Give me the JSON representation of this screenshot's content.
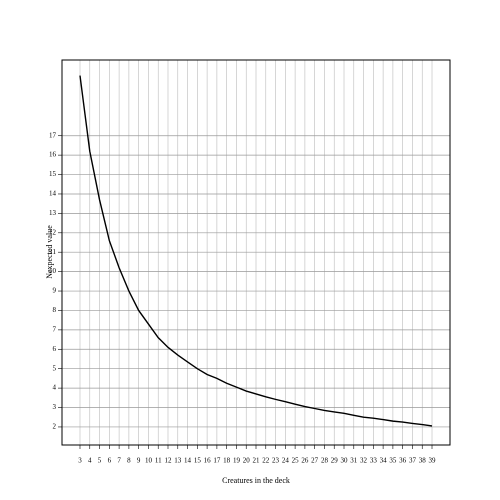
{
  "chart_data": {
    "type": "line",
    "xlabel": "Creatures in the deck",
    "ylabel": "Nexpected value",
    "x": [
      3,
      4,
      5,
      6,
      7,
      8,
      9,
      10,
      11,
      12,
      13,
      14,
      15,
      16,
      17,
      18,
      19,
      20,
      21,
      22,
      23,
      24,
      25,
      26,
      27,
      28,
      29,
      30,
      31,
      32,
      33,
      34,
      35,
      36,
      37,
      38,
      39
    ],
    "values": [
      20.1,
      16.2,
      13.7,
      11.6,
      10.2,
      9.0,
      8.0,
      7.3,
      6.6,
      6.1,
      5.7,
      5.35,
      5.0,
      4.7,
      4.5,
      4.25,
      4.05,
      3.85,
      3.7,
      3.55,
      3.42,
      3.3,
      3.17,
      3.05,
      2.95,
      2.85,
      2.77,
      2.7,
      2.6,
      2.5,
      2.45,
      2.38,
      2.3,
      2.25,
      2.18,
      2.12,
      2.05
    ],
    "color": "#000000",
    "xlim": [
      1.16,
      40.84
    ],
    "ylim": [
      1.07,
      20.9
    ],
    "xticks": [
      3,
      4,
      5,
      6,
      7,
      8,
      9,
      10,
      11,
      12,
      13,
      14,
      15,
      16,
      17,
      18,
      19,
      20,
      21,
      22,
      23,
      24,
      25,
      26,
      27,
      28,
      29,
      30,
      31,
      32,
      33,
      34,
      35,
      36,
      37,
      38,
      39
    ],
    "yticks": [
      2,
      3,
      4,
      5,
      6,
      7,
      8,
      9,
      10,
      11,
      12,
      13,
      14,
      15,
      16,
      17
    ],
    "grid": true
  }
}
